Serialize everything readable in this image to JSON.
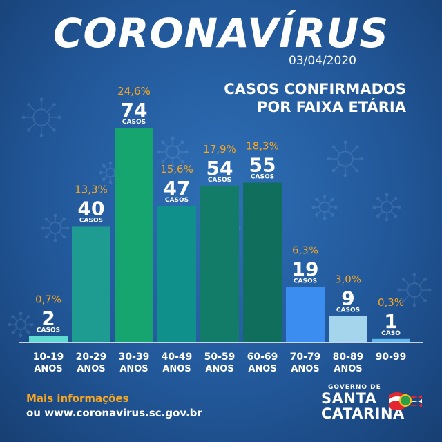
{
  "header": {
    "title": "CORONAVÍRUS",
    "date": "03/04/2020",
    "subtitle_line1": "CASOS CONFIRMADOS",
    "subtitle_line2": "POR FAIXA ETÁRIA"
  },
  "chart_data": {
    "type": "bar",
    "categories": [
      [
        "10-19",
        "ANOS"
      ],
      [
        "20-29",
        "ANOS"
      ],
      [
        "30-39",
        "ANOS"
      ],
      [
        "40-49",
        "ANOS"
      ],
      [
        "50-59",
        "ANOS"
      ],
      [
        "60-69",
        "ANOS"
      ],
      [
        "70-79",
        "ANOS"
      ],
      [
        "80-89",
        "ANOS"
      ],
      [
        "90-99",
        ""
      ]
    ],
    "values": [
      2,
      40,
      74,
      47,
      54,
      55,
      19,
      9,
      1
    ],
    "percentages": [
      "0,7%",
      "13,3%",
      "24,6%",
      "15,6%",
      "17,9%",
      "18,3%",
      "6,3%",
      "3,0%",
      "0,3%"
    ],
    "unit_labels": [
      "CASOS",
      "CASOS",
      "CASOS",
      "CASOS",
      "CASOS",
      "CASOS",
      "CASOS",
      "CASOS",
      "CASO"
    ],
    "colors": [
      "#5fdad0",
      "#1e9c92",
      "#16a56f",
      "#10908a",
      "#127c68",
      "#0f6e5c",
      "#3b8ef0",
      "#a5d5ec",
      "#5fb8ef"
    ],
    "ylim": [
      0,
      74
    ]
  },
  "footer": {
    "info_label": "Mais informações",
    "info_url": "ou www.coronavirus.sc.gov.br"
  },
  "logo": {
    "line1": "GOVERNO DE",
    "line2": "SANTA",
    "line3": "CATARINA"
  },
  "colors": {
    "accent": "#f5a623",
    "background": "#22589a",
    "text": "#ffffff"
  }
}
